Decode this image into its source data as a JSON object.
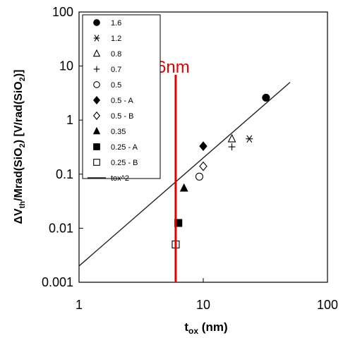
{
  "chart_data": {
    "type": "scatter",
    "x_scale": "log",
    "y_scale": "log",
    "xlim": [
      1,
      100
    ],
    "ylim": [
      0.001,
      100
    ],
    "x_ticks": [
      "1",
      "10",
      "100"
    ],
    "y_ticks": [
      "0.001",
      "0.01",
      "0.1",
      "1",
      "10",
      "100"
    ],
    "xlabel_main": "t",
    "xlabel_sub": "ox",
    "xlabel_unit": " (nm)",
    "ylabel_parts": {
      "delta": "ΔV",
      "sub_th": "th",
      "mid": "/Mrad(SiO",
      "sub_2a": "2",
      "mid2": ") [V/rad(SiO",
      "sub_2b": "2",
      "end": ")]"
    },
    "grid": false,
    "legend_position": "top-left",
    "series": [
      {
        "name": "1.6",
        "marker": "filled-circle",
        "points": [
          [
            32,
            2.6
          ]
        ]
      },
      {
        "name": "1.2",
        "marker": "asterisk",
        "points": [
          [
            23.5,
            0.45
          ]
        ]
      },
      {
        "name": "0.8",
        "marker": "open-triangle",
        "points": [
          [
            17,
            0.45
          ]
        ]
      },
      {
        "name": "0.7",
        "marker": "plus",
        "points": [
          [
            17,
            0.32
          ]
        ]
      },
      {
        "name": "0.5",
        "marker": "open-circle",
        "points": [
          [
            9.3,
            0.09
          ]
        ]
      },
      {
        "name": "0.5 - A",
        "marker": "filled-diamond",
        "points": [
          [
            10,
            0.33
          ]
        ]
      },
      {
        "name": "0.5 - B",
        "marker": "open-diamond",
        "points": [
          [
            10,
            0.14
          ]
        ]
      },
      {
        "name": "0.35",
        "marker": "filled-triangle",
        "points": [
          [
            7,
            0.055
          ]
        ]
      },
      {
        "name": "0.25 - A",
        "marker": "filled-square",
        "points": [
          [
            6.3,
            0.0125
          ]
        ]
      },
      {
        "name": "0.25 - B",
        "marker": "open-square",
        "points": [
          [
            6,
            0.005
          ]
        ]
      },
      {
        "name": "tox^2",
        "marker": "line",
        "line": {
          "x_from": 1,
          "x_to": 50,
          "coefficient": 0.002,
          "exponent": 2
        }
      }
    ],
    "annotation": {
      "text": "6nm",
      "x": 6,
      "color": "#e00000"
    }
  }
}
